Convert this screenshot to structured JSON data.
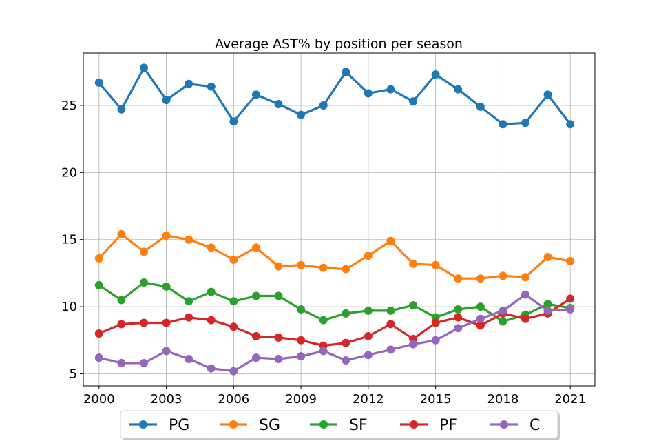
{
  "chart_data": {
    "type": "line",
    "title": "Average AST% by position per season",
    "xlabel": "",
    "ylabel": "",
    "x": [
      2000,
      2001,
      2002,
      2003,
      2004,
      2005,
      2006,
      2007,
      2008,
      2009,
      2010,
      2011,
      2012,
      2013,
      2014,
      2015,
      2016,
      2017,
      2018,
      2019,
      2020,
      2021
    ],
    "xlim": [
      1999.3,
      2022.1
    ],
    "ylim": [
      4.1,
      28.9
    ],
    "xticks": [
      2000,
      2003,
      2006,
      2009,
      2012,
      2015,
      2018,
      2021
    ],
    "yticks": [
      5,
      10,
      15,
      20,
      25
    ],
    "grid": true,
    "legend_position": "bottom-center",
    "series": [
      {
        "name": "PG",
        "color": "#1f77b4",
        "values": [
          26.7,
          24.7,
          27.8,
          25.4,
          26.6,
          26.4,
          23.8,
          25.8,
          25.1,
          24.3,
          25.0,
          27.5,
          25.9,
          26.2,
          25.3,
          27.3,
          26.2,
          24.9,
          23.6,
          23.7,
          25.8,
          23.6
        ]
      },
      {
        "name": "SG",
        "color": "#ff7f0e",
        "values": [
          13.6,
          15.4,
          14.1,
          15.3,
          15.0,
          14.4,
          13.5,
          14.4,
          13.0,
          13.1,
          12.9,
          12.8,
          13.8,
          14.9,
          13.2,
          13.1,
          12.1,
          12.1,
          12.3,
          12.2,
          13.7,
          13.4
        ]
      },
      {
        "name": "SF",
        "color": "#2ca02c",
        "values": [
          11.6,
          10.5,
          11.8,
          11.5,
          10.4,
          11.1,
          10.4,
          10.8,
          10.8,
          9.8,
          9.0,
          9.5,
          9.7,
          9.7,
          10.1,
          9.2,
          9.8,
          10.0,
          8.9,
          9.4,
          10.2,
          9.9
        ]
      },
      {
        "name": "PF",
        "color": "#d62728",
        "values": [
          8.0,
          8.7,
          8.8,
          8.8,
          9.2,
          9.0,
          8.5,
          7.8,
          7.7,
          7.5,
          7.1,
          7.3,
          7.8,
          8.7,
          7.6,
          8.8,
          9.2,
          8.6,
          9.5,
          9.1,
          9.5,
          10.6
        ]
      },
      {
        "name": "C",
        "color": "#9467bd",
        "values": [
          6.2,
          5.8,
          5.8,
          6.7,
          6.1,
          5.4,
          5.2,
          6.2,
          6.1,
          6.3,
          6.7,
          6.0,
          6.4,
          6.8,
          7.2,
          7.5,
          8.4,
          9.1,
          9.7,
          10.9,
          9.7,
          9.8
        ]
      }
    ]
  }
}
